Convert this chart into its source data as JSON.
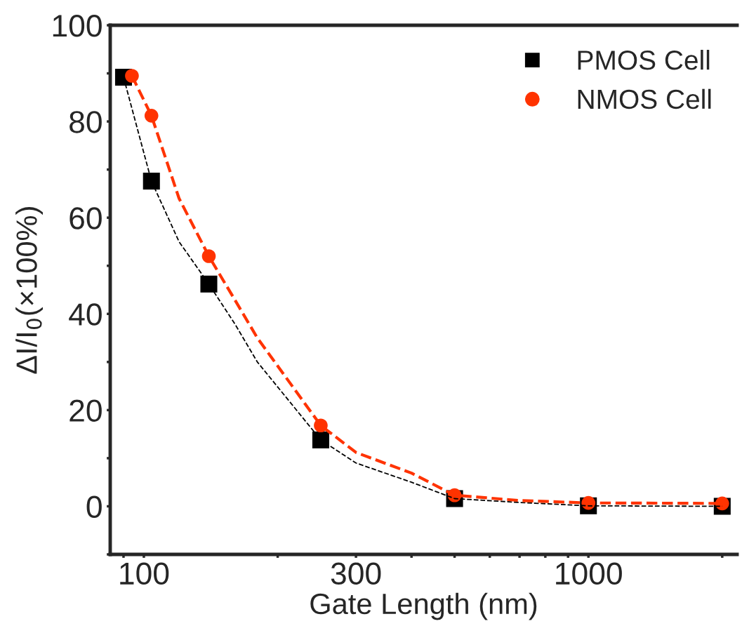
{
  "chart_data": {
    "type": "scatter",
    "xlabel": "Gate Length (nm)",
    "ylabel": "ΔI/I$_{0}$(×100%)",
    "log": "x",
    "legend": "top right",
    "grid": false,
    "xlim": [
      84,
      2160
    ],
    "ylim": [
      -10,
      100
    ],
    "xticks": [
      {
        "value": 90,
        "label": null
      },
      100,
      {
        "value": 200,
        "label": null
      },
      300,
      {
        "value": 400,
        "label": null
      },
      {
        "value": 500,
        "label": null
      },
      {
        "value": 600,
        "label": null
      },
      {
        "value": 700,
        "label": null
      },
      {
        "value": 800,
        "label": null
      },
      {
        "value": 900,
        "label": null
      },
      1000,
      {
        "value": 2000,
        "label": null
      }
    ],
    "yticks": [
      {
        "value": -10,
        "label": null
      },
      0,
      {
        "value": 10,
        "label": null
      },
      20,
      {
        "value": 30,
        "label": null
      },
      40,
      {
        "value": 50,
        "label": null
      },
      60,
      {
        "value": 70,
        "label": null
      },
      80,
      {
        "value": 90,
        "label": null
      },
      100
    ],
    "series": [
      {
        "name": "PMOS Cell",
        "marker": "square",
        "color": "#000000",
        "x": [
          90,
          104,
          140,
          250,
          500,
          1000,
          2000
        ],
        "values": [
          89.2,
          67.6,
          46.2,
          13.8,
          1.6,
          0.1,
          0
        ]
      },
      {
        "name": "NMOS Cell",
        "marker": "circle",
        "color": "#ff3300",
        "x": [
          94,
          104,
          140,
          250,
          500,
          1000,
          2000
        ],
        "values": [
          89.5,
          81.2,
          52.0,
          16.8,
          2.3,
          0.7,
          0.6
        ]
      },
      {
        "type": "line",
        "line_style": "dashed",
        "color": "#000000",
        "x": [
          90,
          104,
          120,
          140,
          160,
          180,
          250,
          300,
          400,
          500,
          700,
          1000,
          2000
        ],
        "values": [
          89.2,
          67.6,
          55,
          46.2,
          38,
          30,
          13.8,
          9.0,
          5.0,
          1.6,
          0.8,
          0.1,
          0
        ]
      },
      {
        "type": "line",
        "line_style": "dashed",
        "color": "#ff3300",
        "x": [
          94,
          104,
          120,
          140,
          160,
          180,
          250,
          300,
          400,
          500,
          700,
          1000,
          2000
        ],
        "values": [
          89.5,
          81.2,
          64,
          52.0,
          43,
          35,
          16.8,
          11.2,
          6.9,
          2.3,
          1.2,
          0.7,
          0.6
        ]
      }
    ]
  }
}
